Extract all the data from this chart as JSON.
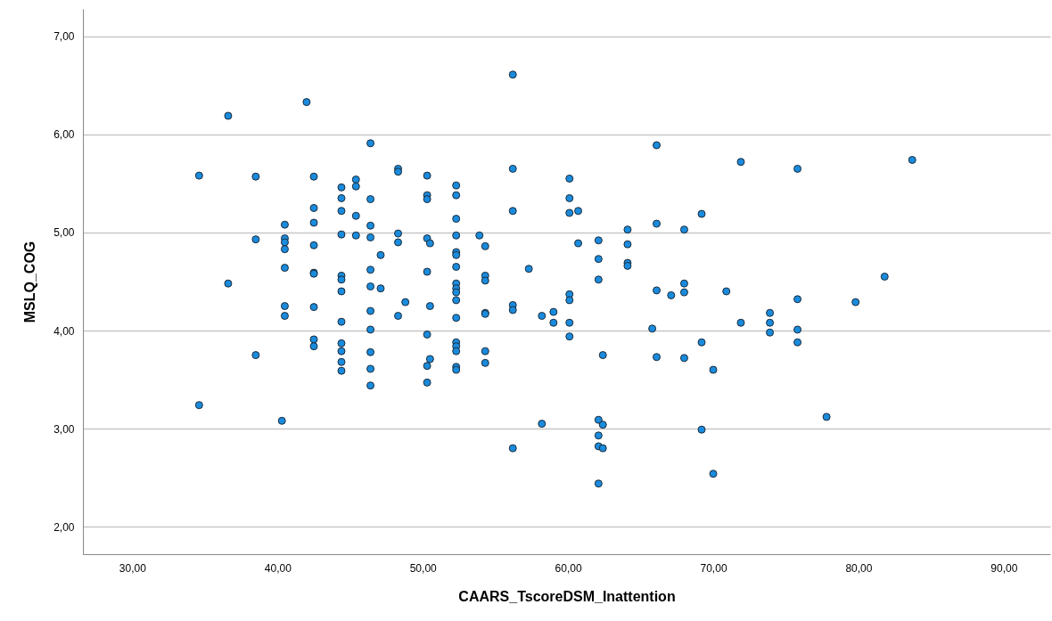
{
  "chart_data": {
    "type": "scatter",
    "xlabel": "CAARS_TscoreDSM_Inattention",
    "ylabel": "MSLQ_COG",
    "xlim": [
      26.6,
      93.2
    ],
    "ylim": [
      1.72,
      7.28
    ],
    "xticks": [
      {
        "value": 30,
        "label": "30,00"
      },
      {
        "value": 40,
        "label": "40,00"
      },
      {
        "value": 50,
        "label": "50,00"
      },
      {
        "value": 60,
        "label": "60,00"
      },
      {
        "value": 70,
        "label": "70,00"
      },
      {
        "value": 80,
        "label": "80,00"
      },
      {
        "value": 90,
        "label": "90,00"
      }
    ],
    "yticks": [
      {
        "value": 2,
        "label": "2,00"
      },
      {
        "value": 3,
        "label": "3,00"
      },
      {
        "value": 4,
        "label": "4,00"
      },
      {
        "value": 5,
        "label": "5,00"
      },
      {
        "value": 6,
        "label": "6,00"
      },
      {
        "value": 7,
        "label": "7,00"
      }
    ],
    "grid": "y",
    "marker": "circle",
    "series": [
      {
        "color": "#1a8bdc",
        "x": [
          34.6,
          34.6,
          36.6,
          36.6,
          38.5,
          38.5,
          38.5,
          40.3,
          40.5,
          40.5,
          40.5,
          40.5,
          40.5,
          40.5,
          40.5,
          42.0,
          42.5,
          42.5,
          42.5,
          42.5,
          42.5,
          42.5,
          42.5,
          42.5,
          42.5,
          44.4,
          44.4,
          44.4,
          44.4,
          44.4,
          44.4,
          44.4,
          44.4,
          44.4,
          44.4,
          44.4,
          44.4,
          45.4,
          45.4,
          45.4,
          45.4,
          46.4,
          46.4,
          46.4,
          46.4,
          46.4,
          46.4,
          46.4,
          46.4,
          46.4,
          46.4,
          46.4,
          47.1,
          47.1,
          48.3,
          48.3,
          48.3,
          48.3,
          48.3,
          48.8,
          50.3,
          50.3,
          50.3,
          50.3,
          50.3,
          50.3,
          50.3,
          50.3,
          50.5,
          50.5,
          50.5,
          52.3,
          52.3,
          52.3,
          52.3,
          52.3,
          52.3,
          52.3,
          52.3,
          52.3,
          52.3,
          52.3,
          52.3,
          52.3,
          52.3,
          52.3,
          52.3,
          52.3,
          53.9,
          54.3,
          54.3,
          54.3,
          54.3,
          54.3,
          54.3,
          54.3,
          56.2,
          56.2,
          56.2,
          56.2,
          56.2,
          56.2,
          57.3,
          58.2,
          58.2,
          59.0,
          59.0,
          60.1,
          60.1,
          60.1,
          60.1,
          60.1,
          60.1,
          60.1,
          60.7,
          60.7,
          62.1,
          62.1,
          62.1,
          62.1,
          62.1,
          62.1,
          62.1,
          62.4,
          62.4,
          62.4,
          64.1,
          64.1,
          64.1,
          64.1,
          65.8,
          66.1,
          66.1,
          66.1,
          66.1,
          67.1,
          68.0,
          68.0,
          68.0,
          68.0,
          69.2,
          69.2,
          69.2,
          70.0,
          70.0,
          70.9,
          71.9,
          71.9,
          73.9,
          73.9,
          73.9,
          75.8,
          75.8,
          75.8,
          75.8,
          77.8,
          79.8,
          81.8,
          83.7
        ],
        "values": [
          5.58,
          3.24,
          6.19,
          4.48,
          5.57,
          4.93,
          3.75,
          3.08,
          5.08,
          4.94,
          4.9,
          4.83,
          4.64,
          4.25,
          4.15,
          6.33,
          5.57,
          5.25,
          5.1,
          4.87,
          4.59,
          4.58,
          4.24,
          3.91,
          3.84,
          5.46,
          5.35,
          5.22,
          4.98,
          4.56,
          4.52,
          4.4,
          4.09,
          3.87,
          3.79,
          3.68,
          3.59,
          5.54,
          5.47,
          5.17,
          4.97,
          5.91,
          5.34,
          5.07,
          4.95,
          4.62,
          4.45,
          4.2,
          4.01,
          3.78,
          3.61,
          3.44,
          4.77,
          4.43,
          5.65,
          5.62,
          4.99,
          4.9,
          4.15,
          4.29,
          5.58,
          5.38,
          5.34,
          4.94,
          4.6,
          3.96,
          3.64,
          3.47,
          4.89,
          4.25,
          3.71,
          5.48,
          5.38,
          5.14,
          4.97,
          4.8,
          4.77,
          4.65,
          4.48,
          4.43,
          4.39,
          4.31,
          4.13,
          3.88,
          3.84,
          3.79,
          3.63,
          3.6,
          4.97,
          4.86,
          4.56,
          4.51,
          4.18,
          4.17,
          3.79,
          3.67,
          6.61,
          5.65,
          5.22,
          4.26,
          4.21,
          2.8,
          4.63,
          4.15,
          3.05,
          4.19,
          4.08,
          5.55,
          5.35,
          5.2,
          4.37,
          4.31,
          4.08,
          3.94,
          5.22,
          4.89,
          4.92,
          4.73,
          4.52,
          3.09,
          2.93,
          2.82,
          2.44,
          3.75,
          3.04,
          2.8,
          5.03,
          4.88,
          4.69,
          4.66,
          4.02,
          5.89,
          5.09,
          4.41,
          3.73,
          4.36,
          5.03,
          4.48,
          4.39,
          3.72,
          5.19,
          3.88,
          2.99,
          3.6,
          2.54,
          4.4,
          5.72,
          4.08,
          4.18,
          4.08,
          3.98,
          5.65,
          4.32,
          4.01,
          3.88,
          3.12,
          4.29,
          4.55,
          5.74
        ]
      }
    ]
  }
}
